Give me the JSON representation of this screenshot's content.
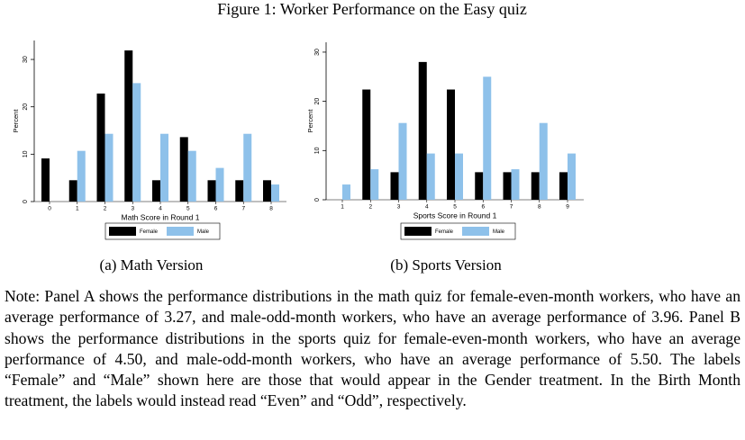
{
  "title": "Figure 1: Worker Performance on the Easy quiz",
  "chart_data": [
    {
      "type": "bar",
      "caption": "(a) Math Version",
      "y_label": "Percent",
      "x_label": "Math Score in Round 1",
      "categories": [
        "0",
        "1",
        "2",
        "3",
        "4",
        "5",
        "6",
        "7",
        "8"
      ],
      "series": [
        {
          "name": "Female",
          "color": "#000000",
          "values": [
            9.1,
            4.5,
            22.8,
            31.9,
            4.5,
            13.6,
            4.5,
            4.5,
            4.5
          ]
        },
        {
          "name": "Male",
          "color": "#8ec1ea",
          "values": [
            0,
            10.7,
            14.3,
            25.0,
            14.3,
            10.7,
            7.1,
            14.3,
            3.6
          ]
        }
      ],
      "ylim": [
        0,
        34
      ],
      "yticks": [
        0,
        10,
        20,
        30
      ]
    },
    {
      "type": "bar",
      "caption": "(b) Sports Version",
      "y_label": "Percent",
      "x_label": "Sports Score in Round 1",
      "categories": [
        "1",
        "2",
        "3",
        "4",
        "5",
        "6",
        "7",
        "8",
        "9"
      ],
      "series": [
        {
          "name": "Female",
          "color": "#000000",
          "values": [
            0,
            22.4,
            5.6,
            28.0,
            22.4,
            5.6,
            5.6,
            5.6,
            5.6
          ]
        },
        {
          "name": "Male",
          "color": "#8ec1ea",
          "values": [
            3.1,
            6.2,
            15.6,
            9.4,
            9.4,
            25.0,
            6.2,
            15.6,
            9.4
          ]
        }
      ],
      "ylim": [
        0,
        32
      ],
      "yticks": [
        0,
        10,
        20,
        30
      ]
    }
  ],
  "note": "Note: Panel A shows the performance distributions in the math quiz for female-even-month workers, who have an average performance of 3.27, and male-odd-month workers, who have an average performance of 3.96. Panel B shows the performance distributions in the sports quiz for female-even-month workers, who have an average performance of 4.50, and male-odd-month workers, who have an average performance of 5.50. The labels “Female” and “Male” shown here are those that would appear in the Gender treatment. In the Birth Month treatment, the labels would instead read “Even” and “Odd”, respectively."
}
